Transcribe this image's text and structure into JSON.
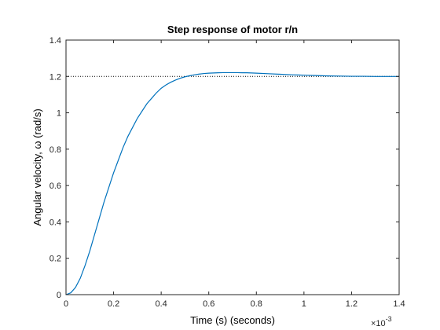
{
  "chart_data": {
    "type": "line",
    "title": "Step response of motor r/n",
    "xlabel": "Time (s) (seconds)",
    "ylabel": "Angular velocity, ω (rad/s)",
    "x_multiplier_label": "×10",
    "x_multiplier_exponent": "-3",
    "xlim": [
      0,
      1.4
    ],
    "ylim": [
      0,
      1.4
    ],
    "xticks": [
      0,
      0.2,
      0.4,
      0.6,
      0.8,
      1,
      1.2,
      1.4
    ],
    "xtick_labels": [
      "0",
      "0.2",
      "0.4",
      "0.6",
      "0.8",
      "1",
      "1.2",
      "1.4"
    ],
    "yticks": [
      0,
      0.2,
      0.4,
      0.6,
      0.8,
      1,
      1.2,
      1.4
    ],
    "ytick_labels": [
      "0",
      "0.2",
      "0.4",
      "0.6",
      "0.8",
      "1",
      "1.2",
      "1.4"
    ],
    "grid": false,
    "steady_state_value": 1.2,
    "series": [
      {
        "color": "#0072BD",
        "x": [
          0,
          0.02,
          0.04,
          0.06,
          0.08,
          0.1,
          0.12,
          0.14,
          0.16,
          0.18,
          0.2,
          0.22,
          0.24,
          0.26,
          0.28,
          0.3,
          0.32,
          0.34,
          0.36,
          0.38,
          0.4,
          0.42,
          0.44,
          0.46,
          0.48,
          0.5,
          0.52,
          0.54,
          0.56,
          0.58,
          0.6,
          0.62,
          0.64,
          0.66,
          0.68,
          0.7,
          0.72,
          0.74,
          0.76,
          0.78,
          0.8,
          0.85,
          0.9,
          0.95,
          1.0,
          1.05,
          1.1,
          1.15,
          1.2,
          1.25,
          1.3,
          1.35,
          1.4
        ],
        "y": [
          0,
          0.01,
          0.04,
          0.09,
          0.16,
          0.24,
          0.33,
          0.42,
          0.51,
          0.59,
          0.67,
          0.74,
          0.81,
          0.87,
          0.92,
          0.97,
          1.01,
          1.05,
          1.08,
          1.11,
          1.135,
          1.153,
          1.168,
          1.18,
          1.19,
          1.198,
          1.204,
          1.209,
          1.213,
          1.216,
          1.218,
          1.219,
          1.22,
          1.221,
          1.221,
          1.221,
          1.221,
          1.22,
          1.22,
          1.219,
          1.218,
          1.215,
          1.212,
          1.209,
          1.207,
          1.205,
          1.203,
          1.202,
          1.201,
          1.201,
          1.2,
          1.2,
          1.2
        ]
      }
    ]
  }
}
